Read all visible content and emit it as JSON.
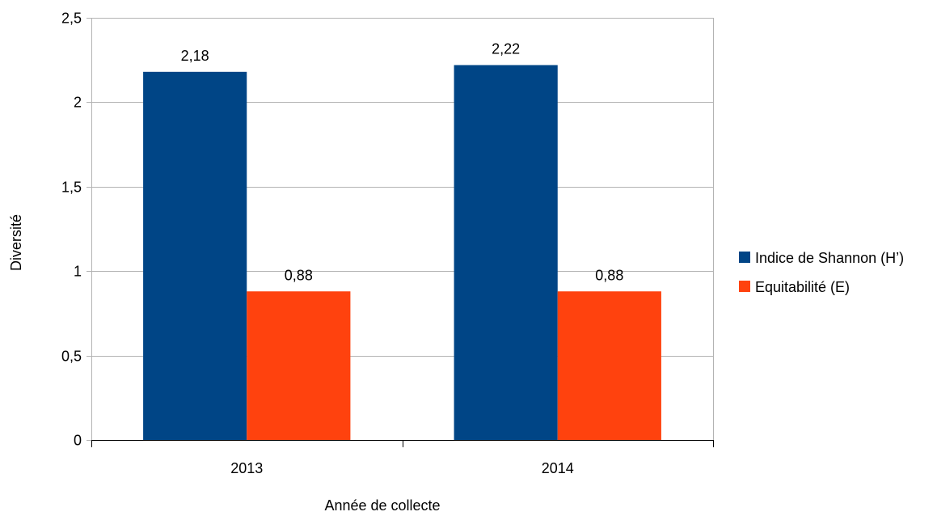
{
  "chart_data": {
    "type": "bar",
    "title": "",
    "xlabel": "Année de collecte",
    "ylabel": "Diversité",
    "categories": [
      "2013",
      "2014"
    ],
    "series": [
      {
        "name": "Indice de Shannon (H’)",
        "values": [
          2.18,
          2.22
        ],
        "value_labels": [
          "2,18",
          "2,22"
        ],
        "color": "#004586"
      },
      {
        "name": "Equitabilité (E)",
        "values": [
          0.88,
          0.88
        ],
        "value_labels": [
          "0,88",
          "0,88"
        ],
        "color": "#ff420e"
      }
    ],
    "ylim": [
      0,
      2.5
    ],
    "yticks": [
      0,
      0.5,
      1,
      1.5,
      2,
      2.5
    ],
    "ytick_labels": [
      "0",
      "0,5",
      "1",
      "1,5",
      "2",
      "2,5"
    ],
    "grid": true,
    "grid_color": "#b3b3b3",
    "legend_position": "right"
  }
}
